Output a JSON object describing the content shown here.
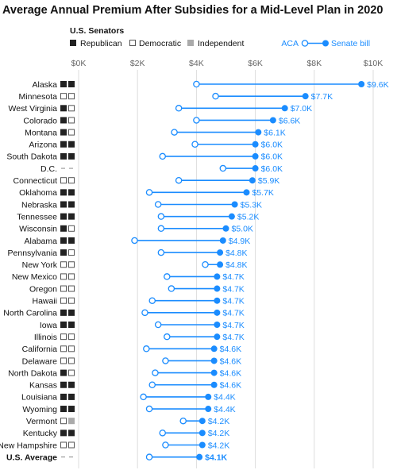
{
  "title": "Average Annual Premium After Subsidies for a Mid-Level Plan in 2020",
  "legend": {
    "senators_heading": "U.S. Senators",
    "republican": "Republican",
    "democratic": "Democratic",
    "independent": "Independent",
    "aca": "ACA",
    "senate_bill": "Senate bill"
  },
  "colors": {
    "accent": "#1a8cff",
    "republican": "#222222",
    "independent": "#aaaaaa",
    "gridline": "#dddddd"
  },
  "chart_data": {
    "type": "dot-range",
    "xlim": [
      0,
      10000
    ],
    "x_ticks": [
      "$0K",
      "$2K",
      "$4K",
      "$6K",
      "$8K",
      "$10K"
    ],
    "series": [
      {
        "name": "ACA",
        "marker": "open-circle"
      },
      {
        "name": "Senate bill",
        "marker": "filled-circle"
      }
    ],
    "rows": [
      {
        "state": "Alaska",
        "senators": [
          "R",
          "R"
        ],
        "aca": 4000,
        "senate": 9600,
        "label": "$9.6K"
      },
      {
        "state": "Minnesota",
        "senators": [
          "D",
          "D"
        ],
        "aca": 4650,
        "senate": 7700,
        "label": "$7.7K"
      },
      {
        "state": "West Virginia",
        "senators": [
          "R",
          "D"
        ],
        "aca": 3400,
        "senate": 7000,
        "label": "$7.0K"
      },
      {
        "state": "Colorado",
        "senators": [
          "R",
          "D"
        ],
        "aca": 4000,
        "senate": 6600,
        "label": "$6.6K"
      },
      {
        "state": "Montana",
        "senators": [
          "R",
          "D"
        ],
        "aca": 3250,
        "senate": 6100,
        "label": "$6.1K"
      },
      {
        "state": "Arizona",
        "senators": [
          "R",
          "R"
        ],
        "aca": 3950,
        "senate": 6000,
        "label": "$6.0K"
      },
      {
        "state": "South Dakota",
        "senators": [
          "R",
          "R"
        ],
        "aca": 2850,
        "senate": 6000,
        "label": "$6.0K"
      },
      {
        "state": "D.C.",
        "senators": [],
        "aca": 4900,
        "senate": 6000,
        "label": "$6.0K"
      },
      {
        "state": "Connecticut",
        "senators": [
          "D",
          "D"
        ],
        "aca": 3400,
        "senate": 5900,
        "label": "$5.9K"
      },
      {
        "state": "Oklahoma",
        "senators": [
          "R",
          "R"
        ],
        "aca": 2400,
        "senate": 5700,
        "label": "$5.7K"
      },
      {
        "state": "Nebraska",
        "senators": [
          "R",
          "R"
        ],
        "aca": 2700,
        "senate": 5300,
        "label": "$5.3K"
      },
      {
        "state": "Tennessee",
        "senators": [
          "R",
          "R"
        ],
        "aca": 2800,
        "senate": 5200,
        "label": "$5.2K"
      },
      {
        "state": "Wisconsin",
        "senators": [
          "R",
          "D"
        ],
        "aca": 2800,
        "senate": 5000,
        "label": "$5.0K"
      },
      {
        "state": "Alabama",
        "senators": [
          "R",
          "R"
        ],
        "aca": 1900,
        "senate": 4900,
        "label": "$4.9K"
      },
      {
        "state": "Pennsylvania",
        "senators": [
          "R",
          "D"
        ],
        "aca": 2800,
        "senate": 4800,
        "label": "$4.8K"
      },
      {
        "state": "New York",
        "senators": [
          "D",
          "D"
        ],
        "aca": 4300,
        "senate": 4800,
        "label": "$4.8K"
      },
      {
        "state": "New Mexico",
        "senators": [
          "D",
          "D"
        ],
        "aca": 3000,
        "senate": 4700,
        "label": "$4.7K"
      },
      {
        "state": "Oregon",
        "senators": [
          "D",
          "D"
        ],
        "aca": 3150,
        "senate": 4700,
        "label": "$4.7K"
      },
      {
        "state": "Hawaii",
        "senators": [
          "D",
          "D"
        ],
        "aca": 2500,
        "senate": 4700,
        "label": "$4.7K"
      },
      {
        "state": "North Carolina",
        "senators": [
          "R",
          "R"
        ],
        "aca": 2250,
        "senate": 4700,
        "label": "$4.7K"
      },
      {
        "state": "Iowa",
        "senators": [
          "R",
          "R"
        ],
        "aca": 2700,
        "senate": 4700,
        "label": "$4.7K"
      },
      {
        "state": "Illinois",
        "senators": [
          "D",
          "D"
        ],
        "aca": 3000,
        "senate": 4700,
        "label": "$4.7K"
      },
      {
        "state": "California",
        "senators": [
          "D",
          "D"
        ],
        "aca": 2300,
        "senate": 4600,
        "label": "$4.6K"
      },
      {
        "state": "Delaware",
        "senators": [
          "D",
          "D"
        ],
        "aca": 2950,
        "senate": 4600,
        "label": "$4.6K"
      },
      {
        "state": "North Dakota",
        "senators": [
          "R",
          "D"
        ],
        "aca": 2600,
        "senate": 4600,
        "label": "$4.6K"
      },
      {
        "state": "Kansas",
        "senators": [
          "R",
          "R"
        ],
        "aca": 2500,
        "senate": 4600,
        "label": "$4.6K"
      },
      {
        "state": "Louisiana",
        "senators": [
          "R",
          "R"
        ],
        "aca": 2200,
        "senate": 4400,
        "label": "$4.4K"
      },
      {
        "state": "Wyoming",
        "senators": [
          "R",
          "R"
        ],
        "aca": 2400,
        "senate": 4400,
        "label": "$4.4K"
      },
      {
        "state": "Vermont",
        "senators": [
          "D",
          "I"
        ],
        "aca": 3550,
        "senate": 4200,
        "label": "$4.2K"
      },
      {
        "state": "Kentucky",
        "senators": [
          "R",
          "R"
        ],
        "aca": 2850,
        "senate": 4200,
        "label": "$4.2K"
      },
      {
        "state": "New Hampshire",
        "senators": [
          "D",
          "D"
        ],
        "aca": 2950,
        "senate": 4200,
        "label": "$4.2K"
      },
      {
        "state": "U.S. Average",
        "senators": [],
        "aca": 2400,
        "senate": 4100,
        "label": "$4.1K",
        "bold": true
      }
    ]
  }
}
